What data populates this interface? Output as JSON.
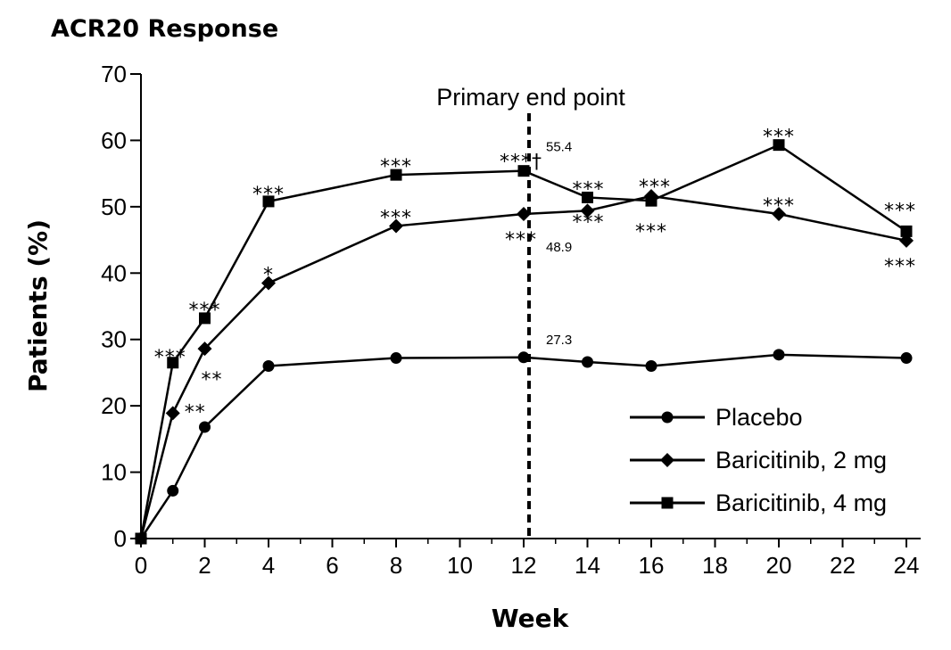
{
  "chart_data": {
    "type": "line",
    "title": "ACR20 Response",
    "xlabel": "Week",
    "ylabel": "Patients (%)",
    "xlim": [
      0,
      24
    ],
    "ylim": [
      0,
      70
    ],
    "xticks": [
      0,
      2,
      4,
      6,
      8,
      10,
      12,
      14,
      16,
      18,
      20,
      22,
      24
    ],
    "yticks": [
      0,
      10,
      20,
      30,
      40,
      50,
      60,
      70
    ],
    "grid": false,
    "legend_position": "bottom-right",
    "reference_line": {
      "x": 12,
      "label": "Primary end point",
      "style": "dashed"
    },
    "series": [
      {
        "name": "Placebo",
        "marker": "circle",
        "x": [
          0,
          1,
          2,
          4,
          8,
          12,
          14,
          16,
          20,
          24
        ],
        "y": [
          0,
          7.2,
          16.8,
          26.0,
          27.2,
          27.3,
          26.6,
          26.0,
          27.7,
          27.2
        ]
      },
      {
        "name": "Baricitinib, 2 mg",
        "marker": "diamond",
        "x": [
          0,
          1,
          2,
          4,
          8,
          12,
          14,
          16,
          20,
          24
        ],
        "y": [
          0,
          18.9,
          28.6,
          38.5,
          47.1,
          48.9,
          49.4,
          51.6,
          48.9,
          44.9
        ]
      },
      {
        "name": "Baricitinib, 4 mg",
        "marker": "square",
        "x": [
          0,
          1,
          2,
          4,
          8,
          12,
          14,
          16,
          20,
          24
        ],
        "y": [
          0,
          26.5,
          33.2,
          50.8,
          54.8,
          55.4,
          51.4,
          50.9,
          59.3,
          46.3
        ]
      }
    ],
    "annotations": [
      {
        "text": "55.4",
        "x": 12,
        "y": 55.4,
        "kind": "value"
      },
      {
        "text": "48.9",
        "x": 12,
        "y": 48.9,
        "kind": "value"
      },
      {
        "text": "27.3",
        "x": 12,
        "y": 27.3,
        "kind": "value"
      },
      {
        "text": "***",
        "x": 1,
        "y": 26.5,
        "kind": "significance"
      },
      {
        "text": "**",
        "x": 1,
        "y": 18.9,
        "kind": "significance"
      },
      {
        "text": "***",
        "x": 2,
        "y": 33.2,
        "kind": "significance"
      },
      {
        "text": "**",
        "x": 2,
        "y": 28.6,
        "kind": "significance"
      },
      {
        "text": "***",
        "x": 4,
        "y": 50.8,
        "kind": "significance"
      },
      {
        "text": "*",
        "x": 4,
        "y": 38.5,
        "kind": "significance"
      },
      {
        "text": "***",
        "x": 8,
        "y": 54.8,
        "kind": "significance"
      },
      {
        "text": "***",
        "x": 8,
        "y": 47.1,
        "kind": "significance"
      },
      {
        "text": "***†",
        "x": 12,
        "y": 55.4,
        "kind": "significance"
      },
      {
        "text": "***",
        "x": 12,
        "y": 48.9,
        "kind": "significance"
      },
      {
        "text": "***",
        "x": 14,
        "y": 51.4,
        "kind": "significance"
      },
      {
        "text": "***",
        "x": 14,
        "y": 49.4,
        "kind": "significance"
      },
      {
        "text": "***",
        "x": 16,
        "y": 51.6,
        "kind": "significance"
      },
      {
        "text": "***",
        "x": 16,
        "y": 50.9,
        "kind": "significance"
      },
      {
        "text": "***",
        "x": 20,
        "y": 59.3,
        "kind": "significance"
      },
      {
        "text": "***",
        "x": 20,
        "y": 48.9,
        "kind": "significance"
      },
      {
        "text": "***",
        "x": 24,
        "y": 46.3,
        "kind": "significance"
      },
      {
        "text": "***",
        "x": 24,
        "y": 44.9,
        "kind": "significance"
      }
    ]
  }
}
